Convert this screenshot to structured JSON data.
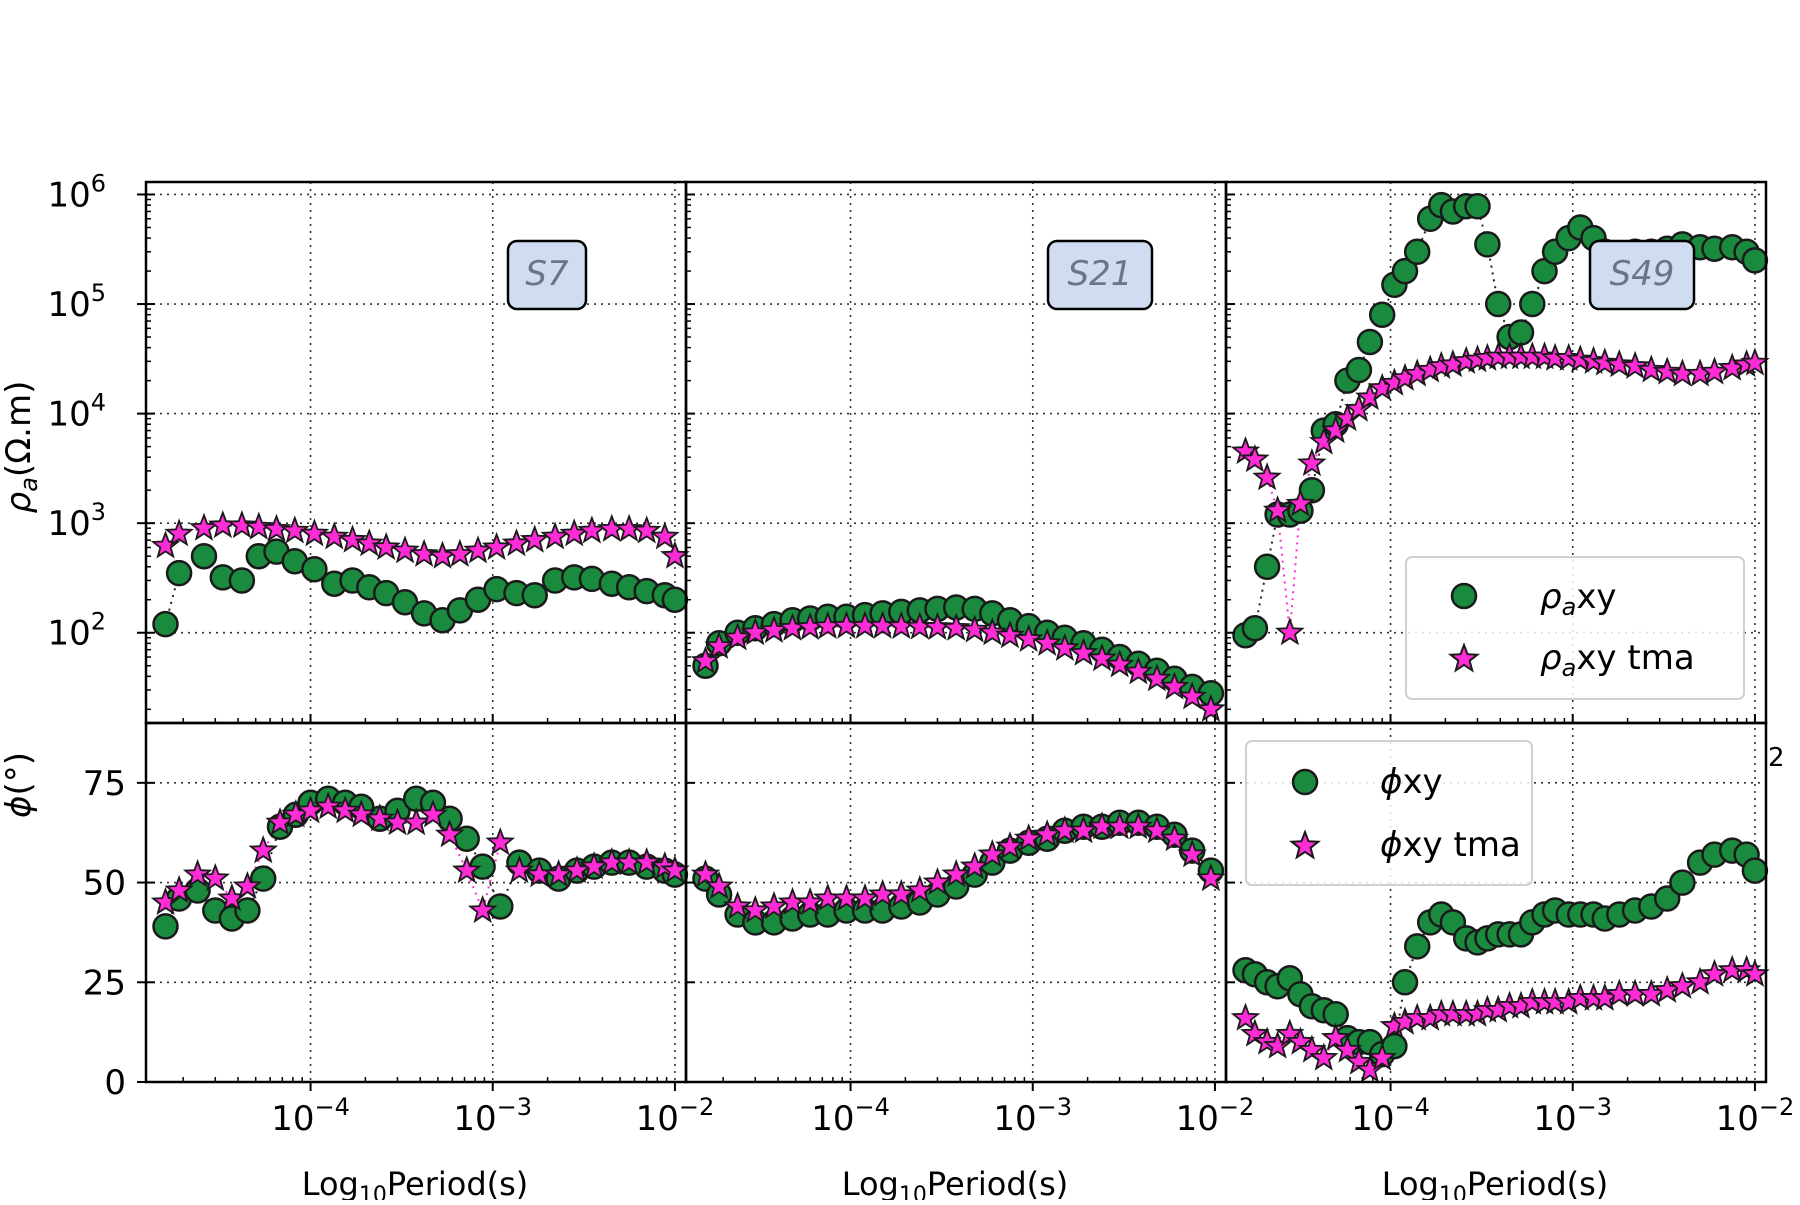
{
  "y_labels": {
    "rho": "ρa(Ω.m)",
    "phi": "ϕ(°)"
  },
  "x_label": "Log10Period(s)",
  "stray_text": "2",
  "legend_rho": {
    "obs": "ρaxy",
    "tma": "ρaxy tma"
  },
  "legend_phi": {
    "obs": "ϕxy",
    "tma": "ϕxy tma"
  },
  "colors": {
    "obs_fill": "#1a8a3e",
    "tma_fill": "#ff2bd6",
    "marker_edge": "#1a1a1a",
    "station_box_fill": "#d0dcef",
    "station_text": "#6b7585"
  },
  "chart_data": [
    {
      "type": "scatter",
      "station": "S7",
      "x_scale": "log",
      "x_ticks": [
        "10^-4",
        "10^-3",
        "10^-2"
      ],
      "rho_scale": "log",
      "rho_ticks": [
        "10^2",
        "10^3",
        "10^4",
        "10^5",
        "10^6"
      ],
      "phi_ticks": [
        "0",
        "25",
        "50",
        "75"
      ],
      "grid": true,
      "series": [
        {
          "name": "ρaxy",
          "panel": "rho",
          "x": [
            1.6e-05,
            1.9e-05,
            2.6e-05,
            3.3e-05,
            4.2e-05,
            5.2e-05,
            6.5e-05,
            8.2e-05,
            0.000105,
            0.000135,
            0.00017,
            0.00021,
            0.00026,
            0.00033,
            0.00042,
            0.00053,
            0.00066,
            0.00083,
            0.00105,
            0.00135,
            0.0017,
            0.0022,
            0.0028,
            0.0035,
            0.0045,
            0.0056,
            0.007,
            0.0088,
            0.01
          ],
          "y": [
            120,
            350,
            500,
            320,
            300,
            500,
            550,
            450,
            380,
            280,
            300,
            260,
            230,
            190,
            150,
            130,
            160,
            200,
            250,
            230,
            220,
            300,
            320,
            310,
            280,
            260,
            240,
            220,
            200
          ]
        },
        {
          "name": "ρaxy tma",
          "panel": "rho",
          "x": [
            1.6e-05,
            1.9e-05,
            2.6e-05,
            3.3e-05,
            4.2e-05,
            5.2e-05,
            6.5e-05,
            8.2e-05,
            0.000105,
            0.000135,
            0.00017,
            0.00021,
            0.00026,
            0.00033,
            0.00042,
            0.00053,
            0.00066,
            0.00083,
            0.00105,
            0.00135,
            0.0017,
            0.0022,
            0.0028,
            0.0035,
            0.0045,
            0.0056,
            0.007,
            0.0088,
            0.01
          ],
          "y": [
            620,
            800,
            900,
            950,
            950,
            920,
            880,
            850,
            800,
            750,
            700,
            650,
            600,
            560,
            520,
            500,
            520,
            560,
            600,
            650,
            700,
            750,
            800,
            850,
            880,
            880,
            850,
            750,
            500
          ]
        },
        {
          "name": "ϕxy",
          "panel": "phi",
          "x": [
            1.6e-05,
            1.9e-05,
            2.4e-05,
            3e-05,
            3.7e-05,
            4.5e-05,
            5.5e-05,
            6.8e-05,
            8.3e-05,
            0.0001,
            0.000125,
            0.000155,
            0.00019,
            0.00024,
            0.0003,
            0.00038,
            0.00047,
            0.00058,
            0.00072,
            0.00088,
            0.0011,
            0.0014,
            0.0018,
            0.0023,
            0.0029,
            0.0036,
            0.0045,
            0.0056,
            0.007,
            0.0088,
            0.01
          ],
          "y": [
            39,
            46,
            48,
            43,
            41,
            43,
            51,
            64,
            67,
            70,
            71,
            70,
            69,
            66,
            68,
            71,
            70,
            66,
            61,
            54,
            44,
            55,
            53,
            51,
            53,
            54,
            55,
            55,
            54,
            53,
            52
          ]
        },
        {
          "name": "ϕxy tma",
          "panel": "phi",
          "x": [
            1.6e-05,
            1.9e-05,
            2.4e-05,
            3e-05,
            3.7e-05,
            4.5e-05,
            5.5e-05,
            6.8e-05,
            8.3e-05,
            0.0001,
            0.000125,
            0.000155,
            0.00019,
            0.00024,
            0.0003,
            0.00038,
            0.00047,
            0.00058,
            0.00072,
            0.00088,
            0.0011,
            0.0014,
            0.0018,
            0.0023,
            0.0029,
            0.0036,
            0.0045,
            0.0056,
            0.007,
            0.0088,
            0.01
          ],
          "y": [
            45,
            48,
            52,
            51,
            46,
            49,
            58,
            65,
            67,
            68,
            69,
            68,
            67,
            66,
            65,
            65,
            67,
            62,
            53,
            43,
            60,
            53,
            52,
            52,
            53,
            54,
            55,
            55,
            55,
            54,
            53
          ]
        }
      ]
    },
    {
      "type": "scatter",
      "station": "S21",
      "x_scale": "log",
      "x_ticks": [
        "10^-4",
        "10^-3",
        "10^-2"
      ],
      "rho_scale": "log",
      "grid": true,
      "series": [
        {
          "name": "ρaxy",
          "panel": "rho",
          "x": [
            1.6e-05,
            1.9e-05,
            2.4e-05,
            3e-05,
            3.8e-05,
            4.8e-05,
            6e-05,
            7.5e-05,
            9.5e-05,
            0.00012,
            0.00015,
            0.00019,
            0.00024,
            0.0003,
            0.00038,
            0.00048,
            0.0006,
            0.00075,
            0.00095,
            0.0012,
            0.0015,
            0.0019,
            0.0024,
            0.003,
            0.0038,
            0.0048,
            0.006,
            0.0075,
            0.0095
          ],
          "y": [
            50,
            80,
            100,
            110,
            120,
            130,
            135,
            140,
            140,
            145,
            150,
            155,
            160,
            165,
            170,
            165,
            150,
            130,
            115,
            100,
            90,
            80,
            70,
            60,
            52,
            45,
            38,
            32,
            28
          ]
        },
        {
          "name": "ρaxy tma",
          "panel": "rho",
          "x": [
            1.6e-05,
            1.9e-05,
            2.4e-05,
            3e-05,
            3.8e-05,
            4.8e-05,
            6e-05,
            7.5e-05,
            9.5e-05,
            0.00012,
            0.00015,
            0.00019,
            0.00024,
            0.0003,
            0.00038,
            0.00048,
            0.0006,
            0.00075,
            0.00095,
            0.0012,
            0.0015,
            0.0019,
            0.0024,
            0.003,
            0.0038,
            0.0048,
            0.006,
            0.0075,
            0.0095
          ],
          "y": [
            55,
            75,
            90,
            100,
            105,
            110,
            112,
            114,
            115,
            115,
            115,
            114,
            113,
            112,
            110,
            106,
            100,
            94,
            87,
            80,
            72,
            65,
            58,
            51,
            44,
            38,
            32,
            26,
            20
          ]
        },
        {
          "name": "ϕxy",
          "panel": "phi",
          "x": [
            1.6e-05,
            1.9e-05,
            2.4e-05,
            3e-05,
            3.8e-05,
            4.8e-05,
            6e-05,
            7.5e-05,
            9.5e-05,
            0.00012,
            0.00015,
            0.00019,
            0.00024,
            0.0003,
            0.00038,
            0.00048,
            0.0006,
            0.00075,
            0.00095,
            0.0012,
            0.0015,
            0.0019,
            0.0024,
            0.003,
            0.0038,
            0.0048,
            0.006,
            0.0075,
            0.0095
          ],
          "y": [
            51,
            47,
            42,
            40,
            40,
            41,
            42,
            42,
            43,
            43,
            43,
            44,
            45,
            47,
            49,
            52,
            55,
            58,
            60,
            61,
            63,
            64,
            64,
            65,
            65,
            64,
            62,
            58,
            53
          ]
        },
        {
          "name": "ϕxy tma",
          "panel": "phi",
          "x": [
            1.6e-05,
            1.9e-05,
            2.4e-05,
            3e-05,
            3.8e-05,
            4.8e-05,
            6e-05,
            7.5e-05,
            9.5e-05,
            0.00012,
            0.00015,
            0.00019,
            0.00024,
            0.0003,
            0.00038,
            0.00048,
            0.0006,
            0.00075,
            0.00095,
            0.0012,
            0.0015,
            0.0019,
            0.0024,
            0.003,
            0.0038,
            0.0048,
            0.006,
            0.0075,
            0.0095
          ],
          "y": [
            52,
            49,
            44,
            43,
            44,
            45,
            45,
            46,
            46,
            46,
            47,
            47,
            48,
            50,
            52,
            54,
            57,
            59,
            61,
            62,
            63,
            63,
            64,
            64,
            64,
            63,
            61,
            57,
            51
          ]
        }
      ]
    },
    {
      "type": "scatter",
      "station": "S49",
      "x_scale": "log",
      "x_ticks": [
        "10^-4",
        "10^-3",
        "10^-2"
      ],
      "rho_scale": "log",
      "legend": "bottom-right",
      "phi_legend": "top-left",
      "grid": true,
      "series": [
        {
          "name": "ρaxy",
          "panel": "rho",
          "x": [
            1.6e-05,
            1.8e-05,
            2.1e-05,
            2.4e-05,
            2.8e-05,
            3.2e-05,
            3.7e-05,
            4.3e-05,
            5e-05,
            5.8e-05,
            6.7e-05,
            7.7e-05,
            9e-05,
            0.000105,
            0.00012,
            0.00014,
            0.000165,
            0.00019,
            0.00022,
            0.00026,
            0.0003,
            0.00034,
            0.00039,
            0.00045,
            0.00052,
            0.0006,
            0.0007,
            0.0008,
            0.00095,
            0.0011,
            0.0013,
            0.0015,
            0.0018,
            0.0022,
            0.0027,
            0.0033,
            0.004,
            0.005,
            0.006,
            0.0075,
            0.009,
            0.01
          ],
          "y": [
            95,
            110,
            400,
            1200,
            1200,
            1300,
            2000,
            7000,
            8000,
            20000,
            25000,
            45000,
            80000,
            150000,
            200000,
            300000,
            600000,
            800000,
            700000,
            780000,
            780000,
            350000,
            100000,
            50000,
            55000,
            100000,
            200000,
            300000,
            400000,
            500000,
            400000,
            300000,
            250000,
            300000,
            300000,
            320000,
            350000,
            330000,
            320000,
            330000,
            300000,
            250000
          ]
        },
        {
          "name": "ρaxy tma",
          "panel": "rho",
          "x": [
            1.6e-05,
            1.8e-05,
            2.1e-05,
            2.4e-05,
            2.8e-05,
            3.2e-05,
            3.7e-05,
            4.3e-05,
            5e-05,
            5.8e-05,
            6.7e-05,
            7.7e-05,
            9e-05,
            0.000105,
            0.00012,
            0.00014,
            0.000165,
            0.00019,
            0.00022,
            0.00026,
            0.0003,
            0.00034,
            0.00039,
            0.00045,
            0.00052,
            0.0006,
            0.0007,
            0.0008,
            0.00095,
            0.0011,
            0.0013,
            0.0015,
            0.0018,
            0.0022,
            0.0027,
            0.0033,
            0.004,
            0.005,
            0.006,
            0.0075,
            0.009,
            0.01
          ],
          "y": [
            4500,
            3800,
            2600,
            1300,
            100,
            1500,
            3500,
            5500,
            7000,
            9000,
            11000,
            14000,
            17000,
            19000,
            21000,
            23000,
            25000,
            27000,
            28000,
            30000,
            31000,
            32000,
            33000,
            33000,
            33000,
            33000,
            33000,
            32000,
            32000,
            31000,
            30000,
            29000,
            28000,
            27000,
            25000,
            24000,
            23000,
            23000,
            24000,
            26000,
            28000,
            29000
          ]
        },
        {
          "name": "ϕxy",
          "panel": "phi",
          "x": [
            1.6e-05,
            1.8e-05,
            2.1e-05,
            2.4e-05,
            2.8e-05,
            3.2e-05,
            3.7e-05,
            4.3e-05,
            5e-05,
            5.8e-05,
            6.7e-05,
            7.7e-05,
            9e-05,
            0.000105,
            0.00012,
            0.00014,
            0.000165,
            0.00019,
            0.00022,
            0.00026,
            0.0003,
            0.00034,
            0.00039,
            0.00045,
            0.00052,
            0.0006,
            0.0007,
            0.0008,
            0.00095,
            0.0011,
            0.0013,
            0.0015,
            0.0018,
            0.0022,
            0.0027,
            0.0033,
            0.004,
            0.005,
            0.006,
            0.0075,
            0.009,
            0.01
          ],
          "y": [
            28,
            27,
            25,
            24,
            26,
            22,
            19,
            18,
            17,
            11,
            10,
            10,
            7,
            9,
            25,
            34,
            40,
            42,
            40,
            36,
            35,
            36,
            37,
            37,
            37,
            40,
            42,
            43,
            42,
            42,
            42,
            41,
            42,
            43,
            44,
            46,
            50,
            55,
            57,
            58,
            57,
            53
          ]
        },
        {
          "name": "ϕxy tma",
          "panel": "phi",
          "x": [
            1.6e-05,
            1.8e-05,
            2.1e-05,
            2.4e-05,
            2.8e-05,
            3.2e-05,
            3.7e-05,
            4.3e-05,
            5e-05,
            5.8e-05,
            6.7e-05,
            7.7e-05,
            9e-05,
            0.000105,
            0.00012,
            0.00014,
            0.000165,
            0.00019,
            0.00022,
            0.00026,
            0.0003,
            0.00034,
            0.00039,
            0.00045,
            0.00052,
            0.0006,
            0.0007,
            0.0008,
            0.00095,
            0.0011,
            0.0013,
            0.0015,
            0.0018,
            0.0022,
            0.0027,
            0.0033,
            0.004,
            0.005,
            0.006,
            0.0075,
            0.009,
            0.01
          ],
          "y": [
            16,
            12,
            10,
            9,
            12,
            10,
            8,
            6,
            11,
            8,
            5,
            3,
            6,
            14,
            15,
            16,
            16,
            17,
            17,
            17,
            17,
            18,
            18,
            19,
            19,
            20,
            20,
            20,
            20,
            21,
            21,
            21,
            22,
            22,
            22,
            23,
            24,
            25,
            27,
            28,
            28,
            27
          ]
        }
      ]
    }
  ]
}
